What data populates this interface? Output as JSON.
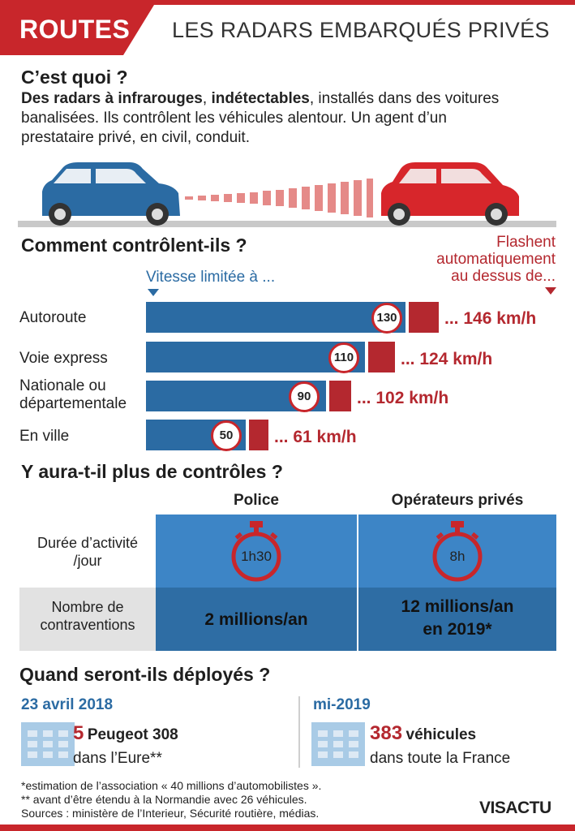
{
  "header": {
    "tag": "ROUTES",
    "title": "LES RADARS EMBARQUÉS PRIVÉS"
  },
  "what": {
    "heading": "C’est quoi ?",
    "bold1": "Des radars à infrarouges",
    "sep": ", ",
    "bold2": "indétectables",
    "rest1": ", installés dans des voitures",
    "line2": "banalisées. Ils contrôlent les véhicules alentour. Un agent d’un",
    "line3": "prestataire privé, en civil, conduit."
  },
  "control": {
    "heading": "Comment contrôlent-ils ?",
    "speed_header": "Vitesse limitée à ...",
    "flash_header": [
      "Flashent",
      "automatiquement",
      "au dessus de..."
    ],
    "rows": [
      {
        "label": "Autoroute",
        "limit": "130",
        "flash": "... 146 km/h"
      },
      {
        "label": "Voie express",
        "limit": "110",
        "flash": "... 124 km/h"
      },
      {
        "label": "Nationale ou",
        "label2": "départementale",
        "limit": "90",
        "flash": "... 102 km/h"
      },
      {
        "label": "En ville",
        "limit": "50",
        "flash": "... 61 km/h"
      }
    ]
  },
  "more": {
    "heading": "Y aura-t-il plus de contrôles ?",
    "col_police": "Police",
    "col_private": "Opérateurs privés",
    "row1_label": [
      "Durée d’activité",
      "/jour"
    ],
    "row1_police": "1h30",
    "row1_private": "8h",
    "row2_label": [
      "Nombre de",
      "contraventions"
    ],
    "row2_police": "2 millions/an",
    "row2_private": [
      "12 millions/an",
      "en 2019*"
    ]
  },
  "deploy": {
    "heading": "Quand seront-ils déployés ?",
    "left": {
      "date": "23 avril 2018",
      "num": "5",
      "strong": "Peugeot 308",
      "line2": "dans l’Eure**"
    },
    "right": {
      "date": "mi-2019",
      "num": "383",
      "strong": "véhicules",
      "line2": "dans toute la France"
    }
  },
  "footer": {
    "note1": "*estimation de l’association « 40 millions d’automobilistes ».",
    "note2": "** avant d’être étendu à la Normandie avec 26 véhicules.",
    "sources": "Sources : ministère de l’Interieur, Sécurité routière, médias.",
    "logo": "VISACTU"
  },
  "colors": {
    "red": "#c8262b",
    "blue": "#2b6ba3",
    "dark_red": "#b4282f"
  }
}
